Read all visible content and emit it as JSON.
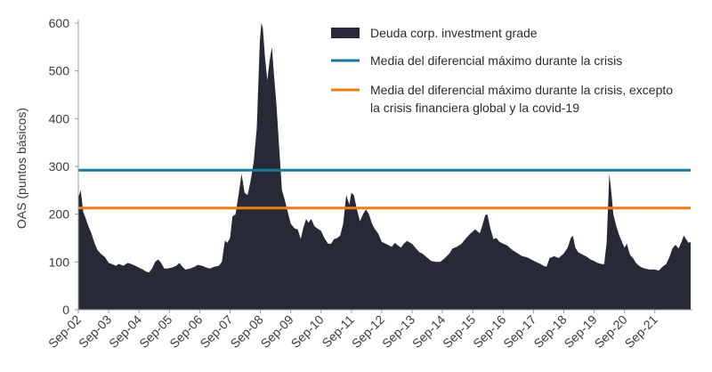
{
  "chart_data": {
    "type": "area",
    "ylabel": "OAS (puntos básicos)",
    "xlabel": "",
    "ylim": [
      0,
      600
    ],
    "yticks": [
      0,
      100,
      200,
      300,
      400,
      500,
      600
    ],
    "x_tick_labels": [
      "Sep-02",
      "Sep-03",
      "Sep-04",
      "Sep-05",
      "Sep-06",
      "Sep-07",
      "Sep-08",
      "Sep-09",
      "Sep-10",
      "Sep-11",
      "Sep-12",
      "Sep-13",
      "Sep-14",
      "Sep-15",
      "Sep-16",
      "Sep-17",
      "Sep-18",
      "Sep-19",
      "Sep-20",
      "Sep-21"
    ],
    "grid": false,
    "legend_position": "top-right",
    "series": [
      {
        "name": "Deuda corp. investment grade",
        "color": "#262a36",
        "kind": "area",
        "points": [
          [
            2002.67,
            235
          ],
          [
            2002.75,
            250
          ],
          [
            2002.83,
            205
          ],
          [
            2002.92,
            190
          ],
          [
            2003.0,
            175
          ],
          [
            2003.1,
            160
          ],
          [
            2003.2,
            140
          ],
          [
            2003.3,
            125
          ],
          [
            2003.4,
            118
          ],
          [
            2003.55,
            110
          ],
          [
            2003.67,
            98
          ],
          [
            2003.8,
            95
          ],
          [
            2003.92,
            92
          ],
          [
            2004.0,
            96
          ],
          [
            2004.15,
            92
          ],
          [
            2004.3,
            98
          ],
          [
            2004.4,
            96
          ],
          [
            2004.55,
            92
          ],
          [
            2004.67,
            88
          ],
          [
            2004.8,
            84
          ],
          [
            2004.9,
            80
          ],
          [
            2005.0,
            78
          ],
          [
            2005.1,
            86
          ],
          [
            2005.2,
            100
          ],
          [
            2005.3,
            105
          ],
          [
            2005.4,
            98
          ],
          [
            2005.5,
            86
          ],
          [
            2005.6,
            86
          ],
          [
            2005.75,
            88
          ],
          [
            2005.9,
            92
          ],
          [
            2006.0,
            98
          ],
          [
            2006.1,
            90
          ],
          [
            2006.2,
            84
          ],
          [
            2006.35,
            86
          ],
          [
            2006.5,
            90
          ],
          [
            2006.6,
            94
          ],
          [
            2006.75,
            92
          ],
          [
            2006.9,
            88
          ],
          [
            2007.0,
            86
          ],
          [
            2007.15,
            90
          ],
          [
            2007.3,
            92
          ],
          [
            2007.4,
            100
          ],
          [
            2007.5,
            145
          ],
          [
            2007.58,
            140
          ],
          [
            2007.67,
            150
          ],
          [
            2007.75,
            195
          ],
          [
            2007.85,
            200
          ],
          [
            2007.95,
            240
          ],
          [
            2008.05,
            285
          ],
          [
            2008.15,
            245
          ],
          [
            2008.25,
            240
          ],
          [
            2008.35,
            270
          ],
          [
            2008.45,
            310
          ],
          [
            2008.55,
            380
          ],
          [
            2008.65,
            560
          ],
          [
            2008.7,
            600
          ],
          [
            2008.75,
            590
          ],
          [
            2008.82,
            530
          ],
          [
            2008.9,
            480
          ],
          [
            2008.97,
            520
          ],
          [
            2009.05,
            550
          ],
          [
            2009.12,
            490
          ],
          [
            2009.2,
            430
          ],
          [
            2009.3,
            330
          ],
          [
            2009.38,
            250
          ],
          [
            2009.45,
            235
          ],
          [
            2009.55,
            210
          ],
          [
            2009.67,
            180
          ],
          [
            2009.8,
            170
          ],
          [
            2009.9,
            168
          ],
          [
            2010.0,
            148
          ],
          [
            2010.08,
            170
          ],
          [
            2010.18,
            190
          ],
          [
            2010.25,
            182
          ],
          [
            2010.35,
            190
          ],
          [
            2010.45,
            175
          ],
          [
            2010.55,
            170
          ],
          [
            2010.67,
            165
          ],
          [
            2010.78,
            150
          ],
          [
            2010.9,
            138
          ],
          [
            2011.0,
            138
          ],
          [
            2011.1,
            148
          ],
          [
            2011.2,
            150
          ],
          [
            2011.3,
            155
          ],
          [
            2011.4,
            180
          ],
          [
            2011.5,
            240
          ],
          [
            2011.6,
            220
          ],
          [
            2011.67,
            245
          ],
          [
            2011.75,
            240
          ],
          [
            2011.85,
            210
          ],
          [
            2011.95,
            185
          ],
          [
            2012.05,
            200
          ],
          [
            2012.15,
            210
          ],
          [
            2012.25,
            200
          ],
          [
            2012.35,
            180
          ],
          [
            2012.45,
            168
          ],
          [
            2012.55,
            160
          ],
          [
            2012.67,
            142
          ],
          [
            2012.8,
            138
          ],
          [
            2012.92,
            134
          ],
          [
            2013.0,
            132
          ],
          [
            2013.1,
            140
          ],
          [
            2013.2,
            135
          ],
          [
            2013.3,
            130
          ],
          [
            2013.4,
            138
          ],
          [
            2013.5,
            144
          ],
          [
            2013.67,
            138
          ],
          [
            2013.8,
            128
          ],
          [
            2013.92,
            120
          ],
          [
            2014.0,
            118
          ],
          [
            2014.15,
            110
          ],
          [
            2014.3,
            102
          ],
          [
            2014.45,
            100
          ],
          [
            2014.6,
            100
          ],
          [
            2014.75,
            108
          ],
          [
            2014.9,
            118
          ],
          [
            2015.0,
            128
          ],
          [
            2015.15,
            132
          ],
          [
            2015.3,
            138
          ],
          [
            2015.45,
            150
          ],
          [
            2015.6,
            160
          ],
          [
            2015.75,
            168
          ],
          [
            2015.9,
            160
          ],
          [
            2016.0,
            180
          ],
          [
            2016.08,
            198
          ],
          [
            2016.15,
            200
          ],
          [
            2016.25,
            170
          ],
          [
            2016.35,
            148
          ],
          [
            2016.45,
            150
          ],
          [
            2016.55,
            142
          ],
          [
            2016.67,
            138
          ],
          [
            2016.8,
            135
          ],
          [
            2016.92,
            128
          ],
          [
            2017.0,
            124
          ],
          [
            2017.15,
            118
          ],
          [
            2017.3,
            112
          ],
          [
            2017.45,
            110
          ],
          [
            2017.6,
            105
          ],
          [
            2017.75,
            100
          ],
          [
            2017.9,
            96
          ],
          [
            2018.0,
            92
          ],
          [
            2018.1,
            90
          ],
          [
            2018.2,
            108
          ],
          [
            2018.35,
            112
          ],
          [
            2018.5,
            108
          ],
          [
            2018.67,
            118
          ],
          [
            2018.8,
            130
          ],
          [
            2018.9,
            150
          ],
          [
            2018.97,
            155
          ],
          [
            2019.05,
            130
          ],
          [
            2019.15,
            120
          ],
          [
            2019.3,
            115
          ],
          [
            2019.45,
            110
          ],
          [
            2019.55,
            105
          ],
          [
            2019.67,
            102
          ],
          [
            2019.78,
            98
          ],
          [
            2019.9,
            96
          ],
          [
            2020.0,
            95
          ],
          [
            2020.08,
            140
          ],
          [
            2020.13,
            220
          ],
          [
            2020.17,
            285
          ],
          [
            2020.23,
            250
          ],
          [
            2020.3,
            200
          ],
          [
            2020.4,
            175
          ],
          [
            2020.5,
            155
          ],
          [
            2020.6,
            140
          ],
          [
            2020.67,
            130
          ],
          [
            2020.75,
            138
          ],
          [
            2020.85,
            115
          ],
          [
            2020.95,
            108
          ],
          [
            2021.05,
            98
          ],
          [
            2021.15,
            92
          ],
          [
            2021.25,
            88
          ],
          [
            2021.35,
            86
          ],
          [
            2021.5,
            84
          ],
          [
            2021.67,
            84
          ],
          [
            2021.8,
            82
          ],
          [
            2021.92,
            90
          ],
          [
            2022.05,
            96
          ],
          [
            2022.15,
            110
          ],
          [
            2022.25,
            128
          ],
          [
            2022.35,
            136
          ],
          [
            2022.45,
            128
          ],
          [
            2022.55,
            142
          ],
          [
            2022.62,
            155
          ],
          [
            2022.7,
            148
          ],
          [
            2022.78,
            140
          ],
          [
            2022.85,
            142
          ]
        ]
      },
      {
        "name": "Media del diferencial máximo durante la crisis",
        "color": "#1a7a9a",
        "kind": "hline",
        "value": 292
      },
      {
        "name": "Media del diferencial máximo durante la crisis, excepto la crisis financiera global y la covid-19",
        "name_lines": [
          "Media del diferencial máximo durante la crisis, excepto",
          "la crisis financiera global y la covid-19"
        ],
        "color": "#f07d1a",
        "kind": "hline",
        "value": 213
      }
    ]
  }
}
